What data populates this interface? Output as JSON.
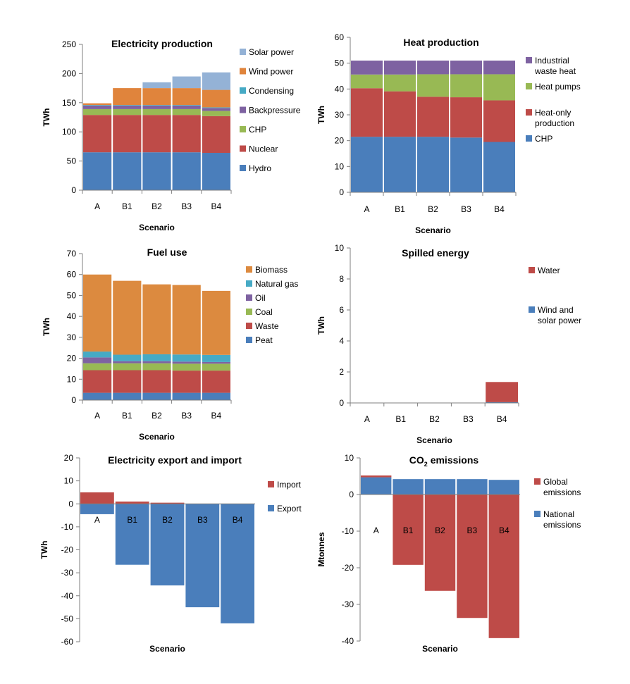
{
  "colors": {
    "hydro": "#4a7ebb",
    "nuclear": "#be4b48",
    "chp": "#98b954",
    "backpressure": "#7e62a1",
    "condensing": "#46aac5",
    "wind": "#f59d56",
    "solar": "#94b2d6",
    "biomass": "#dc8a3f",
    "axis": "#7f7f7f"
  },
  "chart_data": [
    {
      "id": "electricity-production",
      "type": "bar",
      "stacked": true,
      "title": "Electricity production",
      "ylabel": "TWh",
      "xlabel": "Scenario",
      "ylim": [
        0,
        250
      ],
      "yticks": [
        0,
        50,
        100,
        150,
        200,
        250
      ],
      "categories": [
        "A",
        "B1",
        "B2",
        "B3",
        "B4"
      ],
      "series": [
        {
          "name": "Hydro",
          "color": "#4a7ebb",
          "values": [
            65,
            65,
            65,
            65,
            64
          ]
        },
        {
          "name": "Nuclear",
          "color": "#be4b48",
          "values": [
            64,
            64,
            64,
            64,
            63
          ]
        },
        {
          "name": "CHP",
          "color": "#98b954",
          "values": [
            10,
            10,
            10,
            10,
            9
          ]
        },
        {
          "name": "Backpressure",
          "color": "#7e62a1",
          "values": [
            6,
            6,
            6,
            6,
            5
          ]
        },
        {
          "name": "Condensing",
          "color": "#46aac5",
          "values": [
            1,
            1,
            1,
            1,
            1
          ]
        },
        {
          "name": "Wind power",
          "color": "#e0843c",
          "values": [
            3,
            29,
            29,
            29,
            30
          ]
        },
        {
          "name": "Solar power",
          "color": "#94b2d6",
          "values": [
            0,
            0,
            10,
            20,
            30
          ]
        }
      ],
      "legend_order": [
        "Solar power",
        "Wind power",
        "Condensing",
        "Backpressure",
        "CHP",
        "Nuclear",
        "Hydro"
      ]
    },
    {
      "id": "heat-production",
      "type": "bar",
      "stacked": true,
      "title": "Heat production",
      "ylabel": "TWh",
      "xlabel": "Scenario",
      "ylim": [
        0,
        60
      ],
      "yticks": [
        0,
        10,
        20,
        30,
        40,
        50,
        60
      ],
      "categories": [
        "A",
        "B1",
        "B2",
        "B3",
        "B4"
      ],
      "series": [
        {
          "name": "CHP",
          "color": "#4a7ebb",
          "values": [
            21.5,
            21.5,
            21.5,
            21.2,
            19.5
          ]
        },
        {
          "name": "Heat-only production",
          "color": "#be4b48",
          "values": [
            18.8,
            17.6,
            15.5,
            15.6,
            16.1
          ]
        },
        {
          "name": "Heat pumps",
          "color": "#98b954",
          "values": [
            5.3,
            6.5,
            8.7,
            8.9,
            10.1
          ]
        },
        {
          "name": "Industrial waste heat",
          "color": "#7e62a1",
          "values": [
            5.4,
            5.4,
            5.3,
            5.3,
            5.3
          ]
        }
      ],
      "legend": [
        {
          "lines": [
            "Industrial",
            "waste heat"
          ],
          "color": "#7e62a1"
        },
        {
          "lines": [
            "Heat pumps"
          ],
          "color": "#98b954"
        },
        {
          "lines": [
            "Heat-only",
            "production"
          ],
          "color": "#be4b48"
        },
        {
          "lines": [
            "CHP"
          ],
          "color": "#4a7ebb"
        }
      ]
    },
    {
      "id": "fuel-use",
      "type": "bar",
      "stacked": true,
      "title": "Fuel use",
      "ylabel": "TWh",
      "xlabel": "Scenario",
      "ylim": [
        0,
        70
      ],
      "yticks": [
        0,
        10,
        20,
        30,
        40,
        50,
        60,
        70
      ],
      "categories": [
        "A",
        "B1",
        "B2",
        "B3",
        "B4"
      ],
      "series": [
        {
          "name": "Peat",
          "color": "#4a7ebb",
          "values": [
            3.5,
            3.5,
            3.5,
            3.5,
            3.5
          ]
        },
        {
          "name": "Waste",
          "color": "#be4b48",
          "values": [
            10.8,
            10.8,
            10.8,
            10.6,
            10.6
          ]
        },
        {
          "name": "Coal",
          "color": "#98b954",
          "values": [
            3.3,
            3.3,
            3.3,
            3.3,
            3.3
          ]
        },
        {
          "name": "Oil",
          "color": "#7e62a1",
          "values": [
            2.8,
            1.0,
            1.0,
            1.0,
            0.8
          ]
        },
        {
          "name": "Natural gas",
          "color": "#46aac5",
          "values": [
            2.8,
            3.1,
            3.3,
            3.4,
            3.4
          ]
        },
        {
          "name": "Biomass",
          "color": "#dc8a3f",
          "values": [
            36.8,
            35.3,
            33.4,
            33.2,
            30.6
          ]
        }
      ],
      "legend_order": [
        "Biomass",
        "Natural gas",
        "Oil",
        "Coal",
        "Waste",
        "Peat"
      ]
    },
    {
      "id": "spilled-energy",
      "type": "bar",
      "stacked": true,
      "title": "Spilled energy",
      "ylabel": "TWh",
      "xlabel": "Scenario",
      "ylim": [
        0,
        10
      ],
      "yticks": [
        0,
        2,
        4,
        6,
        8,
        10
      ],
      "categories": [
        "A",
        "B1",
        "B2",
        "B3",
        "B4"
      ],
      "series": [
        {
          "name": "Wind and solar power",
          "color": "#4a7ebb",
          "values": [
            0,
            0,
            0,
            0,
            0.05
          ]
        },
        {
          "name": "Water",
          "color": "#be4b48",
          "values": [
            0,
            0,
            0,
            0,
            1.3
          ]
        }
      ],
      "legend": [
        {
          "lines": [
            "Water"
          ],
          "color": "#be4b48"
        },
        {
          "lines": [
            "Wind and",
            "solar power"
          ],
          "color": "#4a7ebb"
        }
      ]
    },
    {
      "id": "electricity-export-import",
      "type": "bar",
      "stacked": true,
      "title": "Electricity export and import",
      "ylabel": "TWh",
      "xlabel": "Scenario",
      "ylim": [
        -60,
        20
      ],
      "yticks": [
        -60,
        -50,
        -40,
        -30,
        -20,
        -10,
        0,
        10,
        20
      ],
      "categories": [
        "A",
        "B1",
        "B2",
        "B3",
        "B4"
      ],
      "series": [
        {
          "name": "Import",
          "color": "#be4b48",
          "values": [
            5,
            1,
            0.5,
            0,
            0
          ]
        },
        {
          "name": "Export",
          "color": "#4a7ebb",
          "values": [
            -4.5,
            -26.5,
            -35.5,
            -45,
            -52
          ]
        }
      ],
      "legend": [
        {
          "lines": [
            "Import"
          ],
          "color": "#be4b48"
        },
        {
          "lines": [
            "Export"
          ],
          "color": "#4a7ebb"
        }
      ]
    },
    {
      "id": "co2-emissions",
      "type": "bar",
      "stacked": true,
      "title_main": "CO",
      "title_sub": "2",
      "title_rest": " emissions",
      "ylabel": "Mtonnes",
      "xlabel": "Scenario",
      "ylim": [
        -40,
        10
      ],
      "yticks": [
        -40,
        -30,
        -20,
        -10,
        0,
        10
      ],
      "categories": [
        "A",
        "B1",
        "B2",
        "B3",
        "B4"
      ],
      "series": [
        {
          "name": "National emissions",
          "color": "#4a7ebb",
          "values": [
            4.7,
            4.2,
            4.2,
            4.2,
            4.0
          ]
        },
        {
          "name": "Global emissions",
          "color": "#be4b48",
          "values": [
            0.5,
            -19.2,
            -26.3,
            -33.7,
            -39.2
          ]
        }
      ],
      "legend": [
        {
          "lines": [
            "Global",
            "emissions"
          ],
          "color": "#be4b48"
        },
        {
          "lines": [
            "National",
            "emissions"
          ],
          "color": "#4a7ebb"
        }
      ]
    }
  ]
}
